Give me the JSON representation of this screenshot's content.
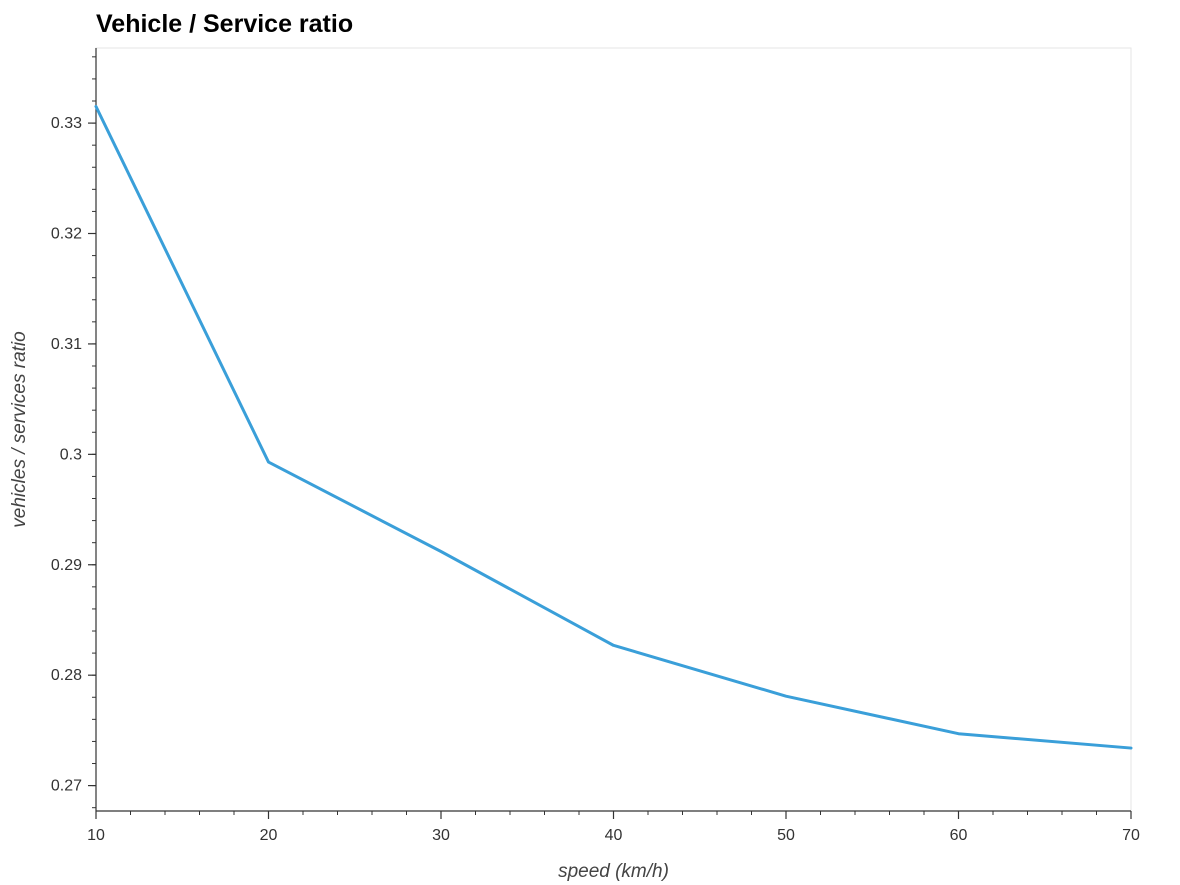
{
  "chart_data": {
    "type": "line",
    "title": "Vehicle / Service ratio",
    "xlabel": "speed (km/h)",
    "ylabel": "vehicles / services ratio",
    "xlim": [
      10,
      70
    ],
    "ylim": [
      0.2677,
      0.3368
    ],
    "x_ticks": [
      10,
      20,
      30,
      40,
      50,
      60,
      70
    ],
    "x_tick_labels": [
      "10",
      "20",
      "30",
      "40",
      "50",
      "60",
      "70"
    ],
    "y_ticks": [
      0.27,
      0.28,
      0.29,
      0.3,
      0.31,
      0.32,
      0.33
    ],
    "y_tick_labels": [
      "0.27",
      "0.28",
      "0.29",
      "0.3",
      "0.31",
      "0.32",
      "0.33"
    ],
    "grid": false,
    "series": [
      {
        "color": "#3a9fd9",
        "x": [
          10,
          20,
          30,
          40,
          50,
          60,
          70
        ],
        "y": [
          0.3315,
          0.2993,
          0.2912,
          0.2827,
          0.2781,
          0.2747,
          0.2734
        ]
      }
    ]
  }
}
